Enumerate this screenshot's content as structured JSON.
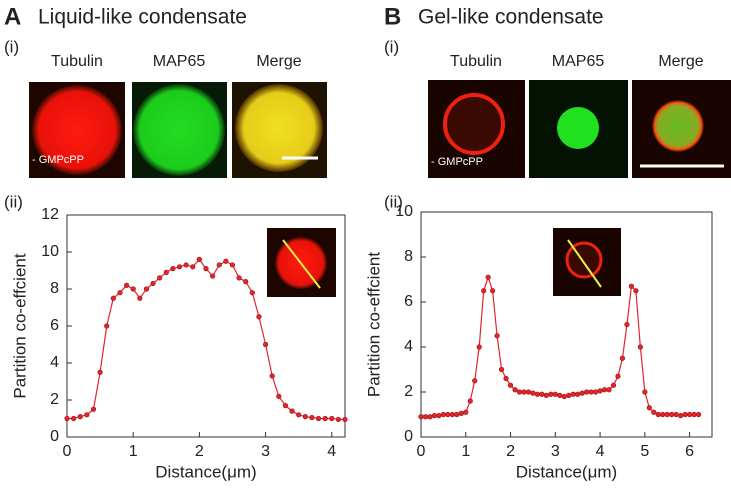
{
  "panels": [
    {
      "letter": "A",
      "title": "Liquid-like condensate",
      "sub_i": "(i)",
      "images": [
        "Tubulin",
        "MAP65",
        "Merge"
      ],
      "note": "- GMPcPP",
      "sub_ii": "(ii)"
    },
    {
      "letter": "B",
      "title": "Gel-like condensate",
      "sub_i": "(i)",
      "images": [
        "Tubulin",
        "MAP65",
        "Merge"
      ],
      "note": "- GMPcPP",
      "sub_ii": "(ii)"
    }
  ],
  "chart_data": [
    {
      "type": "line",
      "xlabel": "Distance(μm)",
      "ylabel": "Partition co-effcient",
      "x": [
        0,
        0.1,
        0.2,
        0.3,
        0.4,
        0.5,
        0.6,
        0.7,
        0.8,
        0.9,
        1.0,
        1.1,
        1.2,
        1.3,
        1.4,
        1.5,
        1.6,
        1.7,
        1.8,
        1.9,
        2.0,
        2.1,
        2.2,
        2.3,
        2.4,
        2.5,
        2.6,
        2.7,
        2.8,
        2.9,
        3.0,
        3.1,
        3.2,
        3.3,
        3.4,
        3.5,
        3.6,
        3.7,
        3.8,
        3.9,
        4.0,
        4.1,
        4.2
      ],
      "series": [
        {
          "color": "#e0252b",
          "values": [
            1,
            1,
            1.1,
            1.2,
            1.5,
            3.5,
            6,
            7.5,
            7.8,
            8.2,
            8,
            7.5,
            8,
            8.3,
            8.6,
            8.9,
            9.1,
            9.2,
            9.3,
            9.2,
            9.6,
            9.1,
            8.7,
            9.3,
            9.5,
            9.3,
            8.6,
            8.4,
            7.8,
            6.5,
            5,
            3.3,
            2.2,
            1.7,
            1.4,
            1.2,
            1.1,
            1.05,
            1,
            1,
            1,
            0.95,
            0.95
          ]
        }
      ],
      "xlim": [
        0,
        4.2
      ],
      "ylim": [
        0,
        12
      ],
      "xticks": [
        0,
        1,
        2,
        3,
        4
      ],
      "yticks": [
        0,
        2,
        4,
        6,
        8,
        10,
        12
      ]
    },
    {
      "type": "line",
      "xlabel": "Distance(μm)",
      "ylabel": "Partition co-effcient",
      "x": [
        0,
        0.1,
        0.2,
        0.3,
        0.4,
        0.5,
        0.6,
        0.7,
        0.8,
        0.9,
        1.0,
        1.1,
        1.2,
        1.3,
        1.4,
        1.5,
        1.6,
        1.7,
        1.8,
        1.9,
        2.0,
        2.1,
        2.2,
        2.3,
        2.4,
        2.5,
        2.6,
        2.7,
        2.8,
        2.9,
        3.0,
        3.1,
        3.2,
        3.3,
        3.4,
        3.5,
        3.6,
        3.7,
        3.8,
        3.9,
        4.0,
        4.1,
        4.2,
        4.3,
        4.4,
        4.5,
        4.6,
        4.7,
        4.8,
        4.9,
        5.0,
        5.1,
        5.2,
        5.3,
        5.4,
        5.5,
        5.6,
        5.7,
        5.8,
        5.9,
        6.0,
        6.1,
        6.2
      ],
      "series": [
        {
          "color": "#e0252b",
          "values": [
            0.9,
            0.9,
            0.9,
            0.95,
            0.95,
            1,
            1,
            1,
            1,
            1.05,
            1.1,
            1.6,
            2.5,
            4,
            6.5,
            7.1,
            6.5,
            4.5,
            3,
            2.6,
            2.3,
            2.1,
            2,
            2,
            2,
            1.95,
            1.9,
            1.9,
            1.85,
            1.9,
            1.9,
            1.85,
            1.8,
            1.85,
            1.9,
            1.9,
            1.95,
            2,
            2,
            2,
            2.05,
            2.1,
            2.1,
            2.3,
            2.7,
            3.5,
            5,
            6.7,
            6.5,
            4,
            2,
            1.3,
            1.1,
            1,
            1,
            1,
            1,
            1,
            0.95,
            1,
            1,
            1,
            1
          ]
        }
      ],
      "xlim": [
        0,
        6.5
      ],
      "ylim": [
        0,
        10
      ],
      "xticks": [
        0,
        1,
        2,
        3,
        4,
        5,
        6
      ],
      "yticks": [
        0,
        2,
        4,
        6,
        8,
        10
      ]
    }
  ]
}
